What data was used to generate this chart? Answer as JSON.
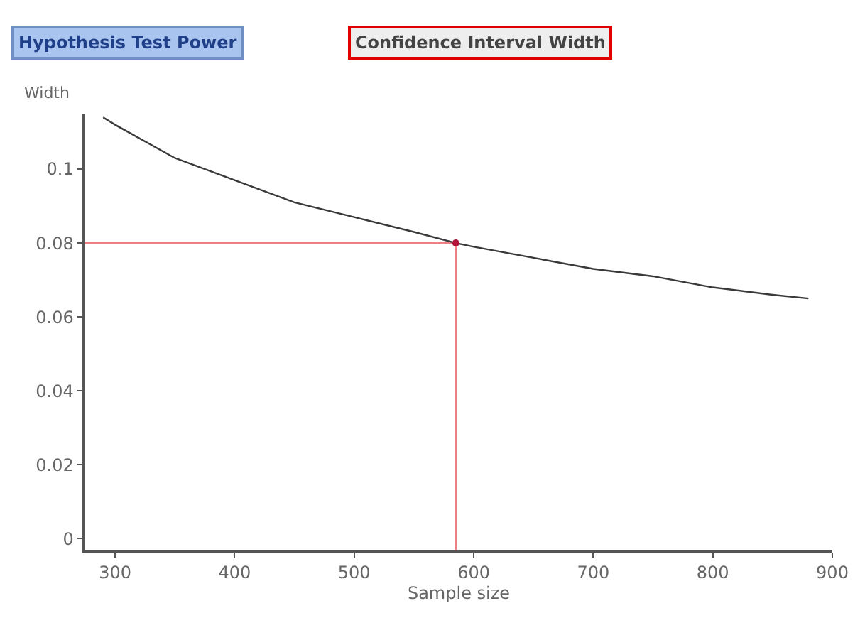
{
  "chart_data": {
    "type": "line",
    "xlabel": "Sample size",
    "ylabel": "Width",
    "annotations": [
      "Hypothesis Test Power",
      "Confidence Interval Width"
    ],
    "x": [
      290,
      300,
      350,
      400,
      450,
      500,
      550,
      585,
      600,
      650,
      700,
      750,
      800,
      850,
      880
    ],
    "series": [
      {
        "color": "#3a3a3a",
        "values": [
          0.114,
          0.112,
          0.103,
          0.097,
          0.091,
          0.087,
          0.083,
          0.08,
          0.079,
          0.076,
          0.073,
          0.071,
          0.068,
          0.066,
          0.065
        ]
      },
      {
        "type": "scatter",
        "color": "#b0163a",
        "x": [
          585
        ],
        "values": [
          0.08
        ]
      }
    ],
    "ref_lines": [
      {
        "axis": "x",
        "value": 585,
        "color": "#f08080"
      },
      {
        "axis": "y",
        "value": 0.08,
        "color": "#f08080"
      }
    ],
    "xlim": [
      275,
      900
    ],
    "xticks": [
      300,
      400,
      500,
      600,
      700,
      800,
      900
    ],
    "ylim": [
      -0.003,
      0.115
    ],
    "yticks": [
      0,
      0.02,
      0.04,
      0.06,
      0.08,
      0.1
    ]
  }
}
